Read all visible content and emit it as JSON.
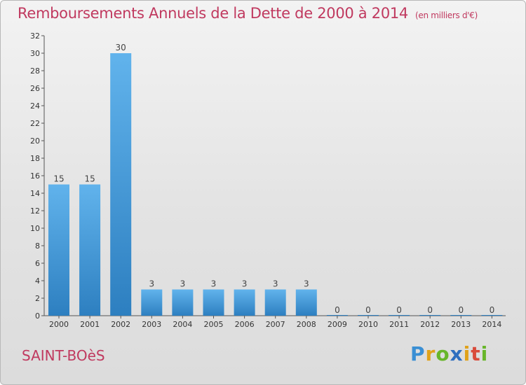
{
  "header": {
    "title": "Remboursements Annuels de la Dette de 2000 à 2014",
    "unit": "(en milliers d'€)"
  },
  "footer": {
    "commune": "SAINT-BOèS",
    "logo": "Proxiti"
  },
  "colors": {
    "accent": "#c0395f",
    "bar_light": "#5fb0ea",
    "bar_dark": "#2a7fc2"
  },
  "chart_data": {
    "type": "bar",
    "title": "Remboursements Annuels de la Dette de 2000 à 2014",
    "subtitle": "(en milliers d'€)",
    "xlabel": "",
    "ylabel": "",
    "categories": [
      "2000",
      "2001",
      "2002",
      "2003",
      "2004",
      "2005",
      "2006",
      "2007",
      "2008",
      "2009",
      "2010",
      "2011",
      "2012",
      "2013",
      "2014"
    ],
    "values": [
      15,
      15,
      30,
      3,
      3,
      3,
      3,
      3,
      3,
      0,
      0,
      0,
      0,
      0,
      0
    ],
    "ylim": [
      0,
      32
    ],
    "yticks": [
      0,
      2,
      4,
      6,
      8,
      10,
      12,
      14,
      16,
      18,
      20,
      22,
      24,
      26,
      28,
      30,
      32
    ],
    "grid": false,
    "legend": "none"
  }
}
